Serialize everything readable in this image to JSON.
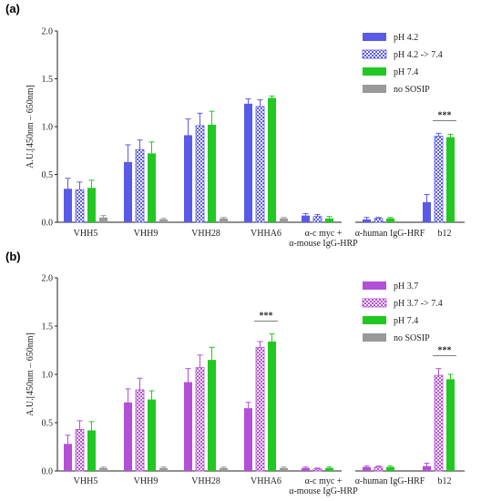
{
  "chart_data": [
    {
      "type": "bar",
      "panel_label": "(a)",
      "ylabel": "A.U.[450nm – 650nm]",
      "ylim": [
        0,
        2.0
      ],
      "yticks": [
        "0.0",
        "0.5",
        "1.0",
        "1.5",
        "2.0"
      ],
      "groups": [
        {
          "label": [
            "VHH5"
          ],
          "values": [
            0.35,
            0.34,
            0.36,
            0.05
          ],
          "errors": [
            0.11,
            0.08,
            0.08,
            0.02
          ]
        },
        {
          "label": [
            "VHH9"
          ],
          "values": [
            0.63,
            0.76,
            0.72,
            0.03
          ],
          "errors": [
            0.18,
            0.1,
            0.12,
            0.01
          ]
        },
        {
          "label": [
            "VHH28"
          ],
          "values": [
            0.91,
            1.01,
            1.02,
            0.04
          ],
          "errors": [
            0.17,
            0.13,
            0.14,
            0.01
          ]
        },
        {
          "label": [
            "VHHA6"
          ],
          "values": [
            1.24,
            1.21,
            1.3,
            0.04
          ],
          "errors": [
            0.05,
            0.07,
            0.02,
            0.01
          ]
        },
        {
          "label": [
            "α-c myc +",
            "α-mouse IgG-HRP"
          ],
          "values": [
            0.07,
            0.06,
            0.04,
            0.0
          ],
          "errors": [
            0.02,
            0.02,
            0.02,
            0.0
          ]
        },
        {
          "label": [
            "α-human IgG-HRF"
          ],
          "values": [
            0.03,
            0.04,
            0.04,
            0.0
          ],
          "errors": [
            0.02,
            0.01,
            0.01,
            0.0
          ]
        },
        {
          "label": [
            "b12"
          ],
          "values": [
            0.21,
            0.9,
            0.89,
            0.0
          ],
          "errors": [
            0.08,
            0.03,
            0.03,
            0.0
          ]
        }
      ],
      "series": [
        {
          "name": "pH 4.2",
          "color": "#5a5ae8",
          "pattern": "solid"
        },
        {
          "name": "pH 4.2 -> 7.4",
          "color": "#5a5ae8",
          "pattern": "checker"
        },
        {
          "name": "pH 7.4",
          "color": "#22c822",
          "pattern": "solid"
        },
        {
          "name": "no SOSIP",
          "color": "#999999",
          "pattern": "solid"
        }
      ],
      "significance": [
        {
          "text": "***",
          "group": 6
        }
      ],
      "legend_position": "top-right"
    },
    {
      "type": "bar",
      "panel_label": "(b)",
      "ylabel": "A.U.[450nm – 650nm]",
      "ylim": [
        0,
        2.0
      ],
      "yticks": [
        "0.0",
        "0.5",
        "1.0",
        "1.5",
        "2.0"
      ],
      "groups": [
        {
          "label": [
            "VHH5"
          ],
          "values": [
            0.28,
            0.43,
            0.42,
            0.03
          ],
          "errors": [
            0.09,
            0.09,
            0.09,
            0.01
          ]
        },
        {
          "label": [
            "VHH9"
          ],
          "values": [
            0.71,
            0.84,
            0.74,
            0.03
          ],
          "errors": [
            0.14,
            0.12,
            0.09,
            0.01
          ]
        },
        {
          "label": [
            "VHH28"
          ],
          "values": [
            0.92,
            1.07,
            1.15,
            0.03
          ],
          "errors": [
            0.14,
            0.13,
            0.13,
            0.01
          ]
        },
        {
          "label": [
            "VHHA6"
          ],
          "values": [
            0.65,
            1.28,
            1.34,
            0.03
          ],
          "errors": [
            0.06,
            0.06,
            0.08,
            0.01
          ]
        },
        {
          "label": [
            "α-c myc +",
            "α-mouse IgG-HRP"
          ],
          "values": [
            0.03,
            0.02,
            0.03,
            0.0
          ],
          "errors": [
            0.01,
            0.01,
            0.01,
            0.0
          ]
        },
        {
          "label": [
            "α-human IgG-HRF"
          ],
          "values": [
            0.04,
            0.04,
            0.04,
            0.0
          ],
          "errors": [
            0.01,
            0.01,
            0.01,
            0.0
          ]
        },
        {
          "label": [
            "b12"
          ],
          "values": [
            0.05,
            0.99,
            0.95,
            0.0
          ],
          "errors": [
            0.03,
            0.07,
            0.05,
            0.0
          ]
        }
      ],
      "series": [
        {
          "name": "pH 3.7",
          "color": "#b44fd8",
          "pattern": "solid"
        },
        {
          "name": "pH 3.7 -> 7.4",
          "color": "#b44fd8",
          "pattern": "checker"
        },
        {
          "name": "pH 7.4",
          "color": "#22c822",
          "pattern": "solid"
        },
        {
          "name": "no SOSIP",
          "color": "#999999",
          "pattern": "solid"
        }
      ],
      "significance": [
        {
          "text": "***",
          "group": 3
        },
        {
          "text": "***",
          "group": 6
        }
      ],
      "legend_position": "top-right"
    }
  ]
}
